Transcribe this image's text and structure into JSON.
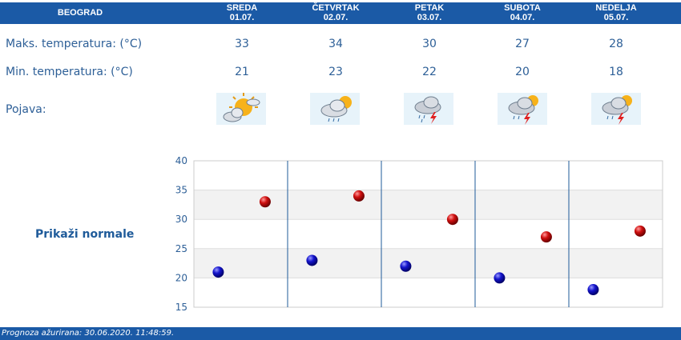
{
  "header": {
    "city": "BEOGRAD",
    "days": [
      {
        "name": "SREDA",
        "date": "01.07."
      },
      {
        "name": "ČETVRTAK",
        "date": "02.07."
      },
      {
        "name": "PETAK",
        "date": "03.07."
      },
      {
        "name": "SUBOTA",
        "date": "04.07."
      },
      {
        "name": "NEDELJA",
        "date": "05.07."
      }
    ]
  },
  "rows": {
    "max_label": "Maks. temperatura: (°C)",
    "min_label": "Min. temperatura: (°C)",
    "phenomenon_label": "Pojava:"
  },
  "weather_icons": [
    "partly-cloudy-icon",
    "cloud-showers-sun-icon",
    "cloud-thunderstorm-rain-icon",
    "cloud-thunderstorm-sun-icon",
    "cloud-thunderstorm-sun-icon"
  ],
  "show_normals_label": "Prikaži normale",
  "footer": {
    "text": "Prognoza ažurirana:  30.06.2020. 11:48:59."
  },
  "colors": {
    "header_bg": "#1b5aa6",
    "text": "#2d5f97",
    "max_point": "#cc0000",
    "min_point": "#0000bb"
  },
  "chart_data": {
    "type": "scatter",
    "categories": [
      "01.07.",
      "02.07.",
      "03.07.",
      "04.07.",
      "05.07."
    ],
    "series": [
      {
        "name": "Maks. temperatura",
        "values": [
          33,
          34,
          30,
          27,
          28
        ]
      },
      {
        "name": "Min. temperatura",
        "values": [
          21,
          23,
          22,
          20,
          18
        ]
      }
    ],
    "yticks": [
      "15",
      "20",
      "25",
      "30",
      "35",
      "40"
    ],
    "ylim": [
      15,
      40
    ],
    "grid": true
  }
}
